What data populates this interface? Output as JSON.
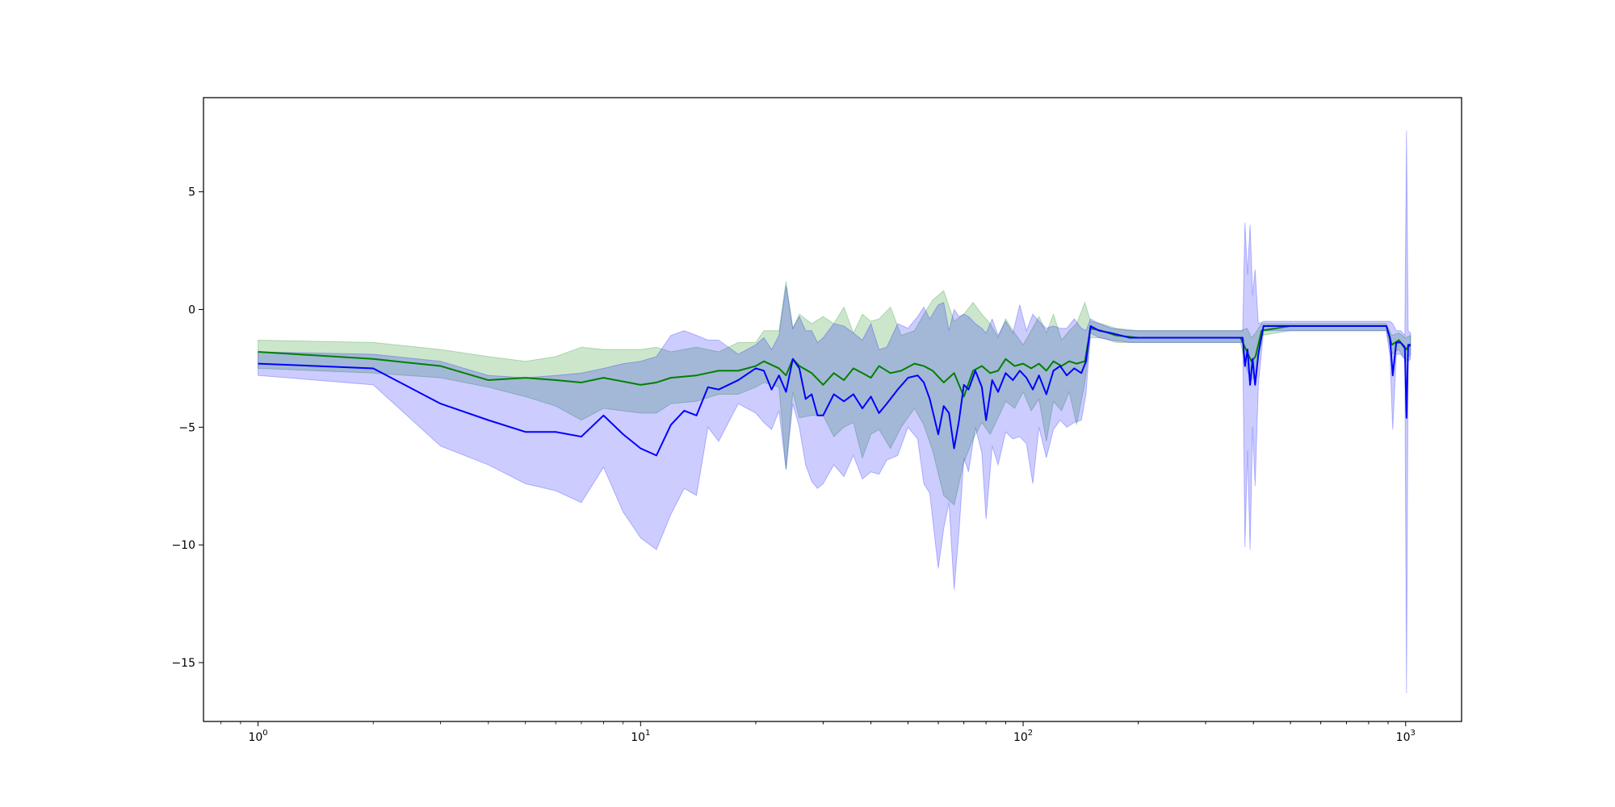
{
  "chart_data": {
    "type": "line",
    "title": "",
    "xlabel": "",
    "ylabel": "",
    "xscale": "log",
    "xlim": [
      0.72,
      1400
    ],
    "ylim": [
      -17.5,
      9
    ],
    "grid": false,
    "legend": "none",
    "x_ticks": [
      {
        "value": 1,
        "base": "10",
        "exp": "0"
      },
      {
        "value": 10,
        "base": "10",
        "exp": "1"
      },
      {
        "value": 100,
        "base": "10",
        "exp": "2"
      },
      {
        "value": 1000,
        "base": "10",
        "exp": "3"
      }
    ],
    "y_ticks": [
      {
        "value": 5,
        "label": "5"
      },
      {
        "value": 0,
        "label": "0"
      },
      {
        "value": -5,
        "label": "−5"
      },
      {
        "value": -10,
        "label": "−10"
      },
      {
        "value": -15,
        "label": "−15"
      }
    ],
    "series": [
      {
        "color": "#008000",
        "band_color": "#008000",
        "band_opacity": 0.2,
        "points": [
          {
            "x": 1,
            "y": -1.8,
            "lo": -2.5,
            "hi": -1.3
          },
          {
            "x": 2,
            "y": -2.1,
            "lo": -2.7,
            "hi": -1.4
          },
          {
            "x": 3,
            "y": -2.4,
            "lo": -2.9,
            "hi": -1.7
          },
          {
            "x": 4,
            "y": -3.0,
            "lo": -3.3,
            "hi": -2.0
          },
          {
            "x": 5,
            "y": -2.9,
            "lo": -3.7,
            "hi": -2.2
          },
          {
            "x": 6,
            "y": -3.0,
            "lo": -4.1,
            "hi": -2.0
          },
          {
            "x": 7,
            "y": -3.1,
            "lo": -4.7,
            "hi": -1.6
          },
          {
            "x": 8,
            "y": -2.9,
            "lo": -4.2,
            "hi": -1.7
          },
          {
            "x": 10,
            "y": -3.2,
            "lo": -4.4,
            "hi": -1.7
          },
          {
            "x": 11,
            "y": -3.1,
            "lo": -4.4,
            "hi": -1.6
          },
          {
            "x": 12,
            "y": -2.9,
            "lo": -4.0,
            "hi": -1.8
          },
          {
            "x": 14,
            "y": -2.8,
            "lo": -3.9,
            "hi": -1.6
          },
          {
            "x": 16,
            "y": -2.6,
            "lo": -3.6,
            "hi": -1.8
          },
          {
            "x": 18,
            "y": -2.6,
            "lo": -3.6,
            "hi": -1.4
          },
          {
            "x": 20,
            "y": -2.4,
            "lo": -3.3,
            "hi": -1.4
          },
          {
            "x": 21,
            "y": -2.2,
            "lo": -3.1,
            "hi": -0.9
          },
          {
            "x": 23,
            "y": -2.5,
            "lo": -3.3,
            "hi": -0.9
          },
          {
            "x": 24,
            "y": -2.8,
            "lo": -6.8,
            "hi": 1.2
          },
          {
            "x": 25,
            "y": -2.1,
            "lo": -3.5,
            "hi": -0.8
          },
          {
            "x": 26,
            "y": -2.4,
            "lo": -4.6,
            "hi": -0.2
          },
          {
            "x": 28,
            "y": -2.7,
            "lo": -4.5,
            "hi": -0.6
          },
          {
            "x": 30,
            "y": -3.2,
            "lo": -4.5,
            "hi": -0.3
          },
          {
            "x": 32,
            "y": -2.7,
            "lo": -5.4,
            "hi": -0.6
          },
          {
            "x": 34,
            "y": -3.0,
            "lo": -5.0,
            "hi": 0.1
          },
          {
            "x": 36,
            "y": -2.5,
            "lo": -4.8,
            "hi": -1.0
          },
          {
            "x": 38,
            "y": -2.7,
            "lo": -6.3,
            "hi": -0.2
          },
          {
            "x": 40,
            "y": -2.9,
            "lo": -5.3,
            "hi": -0.5
          },
          {
            "x": 42,
            "y": -2.4,
            "lo": -5.1,
            "hi": -0.4
          },
          {
            "x": 45,
            "y": -2.7,
            "lo": -5.9,
            "hi": 0.1
          },
          {
            "x": 48,
            "y": -2.6,
            "lo": -5.0,
            "hi": -1.1
          },
          {
            "x": 52,
            "y": -2.3,
            "lo": -4.2,
            "hi": -0.9
          },
          {
            "x": 55,
            "y": -2.4,
            "lo": -4.9,
            "hi": -0.2
          },
          {
            "x": 58,
            "y": -2.6,
            "lo": -6.0,
            "hi": 0.4
          },
          {
            "x": 62,
            "y": -3.1,
            "lo": -7.9,
            "hi": 0.8
          },
          {
            "x": 66,
            "y": -2.7,
            "lo": -8.3,
            "hi": -0.5
          },
          {
            "x": 70,
            "y": -3.7,
            "lo": -6.5,
            "hi": -0.2
          },
          {
            "x": 74,
            "y": -2.6,
            "lo": -5.5,
            "hi": 0.3
          },
          {
            "x": 78,
            "y": -2.4,
            "lo": -4.8,
            "hi": -0.2
          },
          {
            "x": 82,
            "y": -2.7,
            "lo": -5.3,
            "hi": -0.6
          },
          {
            "x": 86,
            "y": -2.6,
            "lo": -4.6,
            "hi": -1.2
          },
          {
            "x": 90,
            "y": -2.1,
            "lo": -3.9,
            "hi": -0.4
          },
          {
            "x": 95,
            "y": -2.4,
            "lo": -4.2,
            "hi": -1.0
          },
          {
            "x": 100,
            "y": -2.3,
            "lo": -3.5,
            "hi": -1.5
          },
          {
            "x": 105,
            "y": -2.5,
            "lo": -4.3,
            "hi": -0.9
          },
          {
            "x": 110,
            "y": -2.3,
            "lo": -3.8,
            "hi": -0.3
          },
          {
            "x": 115,
            "y": -2.6,
            "lo": -5.6,
            "hi": -1.0
          },
          {
            "x": 120,
            "y": -2.2,
            "lo": -3.9,
            "hi": -0.2
          },
          {
            "x": 126,
            "y": -2.4,
            "lo": -4.3,
            "hi": -1.3
          },
          {
            "x": 132,
            "y": -2.2,
            "lo": -3.5,
            "hi": -0.9
          },
          {
            "x": 138,
            "y": -2.3,
            "lo": -4.9,
            "hi": -0.6
          },
          {
            "x": 145,
            "y": -2.2,
            "lo": -3.1,
            "hi": 0.3
          },
          {
            "x": 150,
            "y": -0.8,
            "lo": -1.2,
            "hi": -0.5
          },
          {
            "x": 160,
            "y": -0.9,
            "lo": -1.2,
            "hi": -0.6
          },
          {
            "x": 175,
            "y": -1.1,
            "lo": -1.4,
            "hi": -0.8
          },
          {
            "x": 200,
            "y": -1.2,
            "lo": -1.4,
            "hi": -0.9
          },
          {
            "x": 250,
            "y": -1.2,
            "lo": -1.4,
            "hi": -0.9
          },
          {
            "x": 300,
            "y": -1.2,
            "lo": -1.4,
            "hi": -0.9
          },
          {
            "x": 370,
            "y": -1.2,
            "lo": -1.4,
            "hi": -0.9
          },
          {
            "x": 385,
            "y": -1.8,
            "lo": -2.6,
            "hi": -0.8
          },
          {
            "x": 395,
            "y": -2.2,
            "lo": -3.0,
            "hi": -1.2
          },
          {
            "x": 405,
            "y": -2.0,
            "lo": -2.8,
            "hi": -1.0
          },
          {
            "x": 420,
            "y": -0.9,
            "lo": -1.1,
            "hi": -0.6
          },
          {
            "x": 500,
            "y": -0.7,
            "lo": -0.9,
            "hi": -0.6
          },
          {
            "x": 700,
            "y": -0.7,
            "lo": -0.9,
            "hi": -0.6
          },
          {
            "x": 890,
            "y": -0.7,
            "lo": -0.9,
            "hi": -0.6
          },
          {
            "x": 920,
            "y": -1.5,
            "lo": -1.9,
            "hi": -1.1
          },
          {
            "x": 960,
            "y": -1.3,
            "lo": -1.7,
            "hi": -1.0
          },
          {
            "x": 1000,
            "y": -1.7,
            "lo": -2.2,
            "hi": -1.2
          },
          {
            "x": 1030,
            "y": -1.5,
            "lo": -1.9,
            "hi": -1.1
          }
        ]
      },
      {
        "color": "#0000ff",
        "band_color": "#0000ff",
        "band_opacity": 0.2,
        "points": [
          {
            "x": 1,
            "y": -2.3,
            "lo": -2.8,
            "hi": -1.8
          },
          {
            "x": 2,
            "y": -2.5,
            "lo": -3.2,
            "hi": -1.9
          },
          {
            "x": 3,
            "y": -4.0,
            "lo": -5.8,
            "hi": -2.2
          },
          {
            "x": 4,
            "y": -4.7,
            "lo": -6.6,
            "hi": -2.8
          },
          {
            "x": 5,
            "y": -5.2,
            "lo": -7.4,
            "hi": -2.9
          },
          {
            "x": 6,
            "y": -5.2,
            "lo": -7.7,
            "hi": -2.8
          },
          {
            "x": 7,
            "y": -5.4,
            "lo": -8.2,
            "hi": -2.7
          },
          {
            "x": 8,
            "y": -4.5,
            "lo": -6.7,
            "hi": -2.5
          },
          {
            "x": 9,
            "y": -5.3,
            "lo": -8.6,
            "hi": -2.3
          },
          {
            "x": 10,
            "y": -5.9,
            "lo": -9.7,
            "hi": -2.2
          },
          {
            "x": 11,
            "y": -6.2,
            "lo": -10.2,
            "hi": -2.0
          },
          {
            "x": 12,
            "y": -4.9,
            "lo": -8.7,
            "hi": -1.1
          },
          {
            "x": 13,
            "y": -4.3,
            "lo": -7.6,
            "hi": -0.9
          },
          {
            "x": 14,
            "y": -4.5,
            "lo": -7.9,
            "hi": -1.1
          },
          {
            "x": 15,
            "y": -3.3,
            "lo": -5.0,
            "hi": -1.3
          },
          {
            "x": 16,
            "y": -3.4,
            "lo": -5.6,
            "hi": -1.3
          },
          {
            "x": 18,
            "y": -3.0,
            "lo": -4.0,
            "hi": -1.9
          },
          {
            "x": 20,
            "y": -2.5,
            "lo": -4.4,
            "hi": -1.5
          },
          {
            "x": 21,
            "y": -2.6,
            "lo": -4.8,
            "hi": -1.2
          },
          {
            "x": 22,
            "y": -3.4,
            "lo": -5.1,
            "hi": -1.7
          },
          {
            "x": 23,
            "y": -2.8,
            "lo": -4.3,
            "hi": -1.1
          },
          {
            "x": 24,
            "y": -3.5,
            "lo": -6.8,
            "hi": 1.0
          },
          {
            "x": 25,
            "y": -2.1,
            "lo": -4.0,
            "hi": -0.8
          },
          {
            "x": 26,
            "y": -2.5,
            "lo": -5.0,
            "hi": -0.3
          },
          {
            "x": 27,
            "y": -3.8,
            "lo": -6.6,
            "hi": -0.9
          },
          {
            "x": 28,
            "y": -3.6,
            "lo": -7.3,
            "hi": -0.9
          },
          {
            "x": 29,
            "y": -4.5,
            "lo": -7.6,
            "hi": -1.4
          },
          {
            "x": 30,
            "y": -4.5,
            "lo": -7.4,
            "hi": -1.2
          },
          {
            "x": 32,
            "y": -3.6,
            "lo": -6.6,
            "hi": -0.6
          },
          {
            "x": 34,
            "y": -3.9,
            "lo": -7.1,
            "hi": -0.7
          },
          {
            "x": 36,
            "y": -3.6,
            "lo": -6.2,
            "hi": -1.0
          },
          {
            "x": 38,
            "y": -4.2,
            "lo": -7.2,
            "hi": -1.3
          },
          {
            "x": 40,
            "y": -3.7,
            "lo": -6.9,
            "hi": -0.6
          },
          {
            "x": 42,
            "y": -4.4,
            "lo": -7.0,
            "hi": -1.7
          },
          {
            "x": 44,
            "y": -4.0,
            "lo": -6.4,
            "hi": -1.6
          },
          {
            "x": 47,
            "y": -3.4,
            "lo": -6.2,
            "hi": -0.6
          },
          {
            "x": 50,
            "y": -2.9,
            "lo": -5.0,
            "hi": -0.8
          },
          {
            "x": 53,
            "y": -2.8,
            "lo": -5.5,
            "hi": -0.3
          },
          {
            "x": 55,
            "y": -3.1,
            "lo": -7.4,
            "hi": 0.1
          },
          {
            "x": 57,
            "y": -3.8,
            "lo": -7.8,
            "hi": -0.4
          },
          {
            "x": 60,
            "y": -5.3,
            "lo": -11.0,
            "hi": 0.2
          },
          {
            "x": 62,
            "y": -4.1,
            "lo": -9.3,
            "hi": 0.3
          },
          {
            "x": 64,
            "y": -4.4,
            "lo": -8.2,
            "hi": -0.9
          },
          {
            "x": 66,
            "y": -5.9,
            "lo": -11.9,
            "hi": 0.0
          },
          {
            "x": 68,
            "y": -4.7,
            "lo": -9.4,
            "hi": -0.3
          },
          {
            "x": 70,
            "y": -3.2,
            "lo": -6.3,
            "hi": -0.2
          },
          {
            "x": 72,
            "y": -3.4,
            "lo": -6.9,
            "hi": -0.3
          },
          {
            "x": 75,
            "y": -2.6,
            "lo": -5.0,
            "hi": -0.6
          },
          {
            "x": 78,
            "y": -3.3,
            "lo": -6.1,
            "hi": -0.8
          },
          {
            "x": 80,
            "y": -4.7,
            "lo": -8.9,
            "hi": -1.0
          },
          {
            "x": 83,
            "y": -3.0,
            "lo": -5.8,
            "hi": -0.4
          },
          {
            "x": 86,
            "y": -3.5,
            "lo": -6.6,
            "hi": -1.1
          },
          {
            "x": 90,
            "y": -2.7,
            "lo": -5.2,
            "hi": -0.5
          },
          {
            "x": 94,
            "y": -3.0,
            "lo": -5.5,
            "hi": -1.0
          },
          {
            "x": 98,
            "y": -2.6,
            "lo": -5.4,
            "hi": 0.2
          },
          {
            "x": 102,
            "y": -2.9,
            "lo": -5.7,
            "hi": -0.9
          },
          {
            "x": 106,
            "y": -3.4,
            "lo": -7.4,
            "hi": -0.2
          },
          {
            "x": 110,
            "y": -2.8,
            "lo": -5.0,
            "hi": -0.5
          },
          {
            "x": 115,
            "y": -3.6,
            "lo": -6.3,
            "hi": -0.8
          },
          {
            "x": 120,
            "y": -2.6,
            "lo": -5.1,
            "hi": -0.7
          },
          {
            "x": 125,
            "y": -2.4,
            "lo": -4.7,
            "hi": -0.8
          },
          {
            "x": 130,
            "y": -2.8,
            "lo": -5.0,
            "hi": -0.8
          },
          {
            "x": 136,
            "y": -2.5,
            "lo": -4.8,
            "hi": -0.4
          },
          {
            "x": 142,
            "y": -2.7,
            "lo": -4.7,
            "hi": -0.8
          },
          {
            "x": 146,
            "y": -2.2,
            "lo": -3.6,
            "hi": -0.9
          },
          {
            "x": 150,
            "y": -0.7,
            "lo": -1.0,
            "hi": -0.4
          },
          {
            "x": 158,
            "y": -0.9,
            "lo": -1.2,
            "hi": -0.6
          },
          {
            "x": 170,
            "y": -1.0,
            "lo": -1.3,
            "hi": -0.8
          },
          {
            "x": 190,
            "y": -1.2,
            "lo": -1.4,
            "hi": -0.9
          },
          {
            "x": 230,
            "y": -1.2,
            "lo": -1.4,
            "hi": -0.9
          },
          {
            "x": 300,
            "y": -1.2,
            "lo": -1.4,
            "hi": -0.9
          },
          {
            "x": 375,
            "y": -1.2,
            "lo": -1.4,
            "hi": -0.9
          },
          {
            "x": 380,
            "y": -2.4,
            "lo": -10.1,
            "hi": 3.7
          },
          {
            "x": 386,
            "y": -1.7,
            "lo": -6.0,
            "hi": 1.5
          },
          {
            "x": 392,
            "y": -3.2,
            "lo": -10.2,
            "hi": 3.6
          },
          {
            "x": 398,
            "y": -2.1,
            "lo": -5.0,
            "hi": 0.6
          },
          {
            "x": 404,
            "y": -3.2,
            "lo": -7.5,
            "hi": 1.7
          },
          {
            "x": 412,
            "y": -1.9,
            "lo": -3.2,
            "hi": -0.6
          },
          {
            "x": 425,
            "y": -0.7,
            "lo": -0.9,
            "hi": -0.5
          },
          {
            "x": 600,
            "y": -0.7,
            "lo": -0.9,
            "hi": -0.5
          },
          {
            "x": 890,
            "y": -0.7,
            "lo": -0.9,
            "hi": -0.5
          },
          {
            "x": 910,
            "y": -1.2,
            "lo": -2.0,
            "hi": -0.5
          },
          {
            "x": 925,
            "y": -2.8,
            "lo": -5.1,
            "hi": -0.6
          },
          {
            "x": 945,
            "y": -1.4,
            "lo": -1.9,
            "hi": -0.9
          },
          {
            "x": 970,
            "y": -1.4,
            "lo": -1.9,
            "hi": -0.9
          },
          {
            "x": 995,
            "y": -1.6,
            "lo": -2.1,
            "hi": -1.1
          },
          {
            "x": 1005,
            "y": -4.6,
            "lo": -16.3,
            "hi": 7.6
          },
          {
            "x": 1015,
            "y": -1.5,
            "lo": -2.2,
            "hi": -0.9
          },
          {
            "x": 1030,
            "y": -1.5,
            "lo": -2.1,
            "hi": -1.0
          }
        ]
      }
    ]
  }
}
